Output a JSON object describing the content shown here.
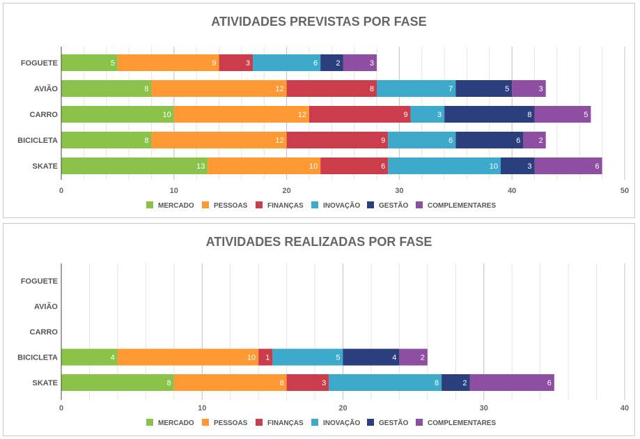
{
  "chart_data": [
    {
      "type": "bar",
      "orientation": "horizontal",
      "stacked": true,
      "title": "ATIVIDADES PREVISTAS POR FASE",
      "categories": [
        "FOGUETE",
        "AVIÃO",
        "CARRO",
        "BICICLETA",
        "SKATE"
      ],
      "series": [
        {
          "name": "MERCADO",
          "color": "#8BC34A",
          "values": [
            5,
            8,
            10,
            8,
            13
          ]
        },
        {
          "name": "PESSOAS",
          "color": "#FF9933",
          "values": [
            9,
            12,
            12,
            12,
            10
          ]
        },
        {
          "name": "FINANÇAS",
          "color": "#CC3D4B",
          "values": [
            3,
            8,
            9,
            9,
            6
          ]
        },
        {
          "name": "INOVAÇÃO",
          "color": "#3DAACC",
          "values": [
            6,
            7,
            3,
            6,
            10
          ]
        },
        {
          "name": "GESTÃO",
          "color": "#2B3F7E",
          "values": [
            2,
            5,
            8,
            6,
            3
          ]
        },
        {
          "name": "COMPLEMENTARES",
          "color": "#8E4FA3",
          "values": [
            3,
            3,
            5,
            2,
            6
          ]
        }
      ],
      "xlim": [
        0,
        50
      ],
      "xticks": [
        0,
        10,
        20,
        30,
        40,
        50
      ],
      "minor_grid_step": 2,
      "grid": true,
      "legend_position": "bottom"
    },
    {
      "type": "bar",
      "orientation": "horizontal",
      "stacked": true,
      "title": "ATIVIDADES REALIZADAS POR FASE",
      "categories": [
        "FOGUETE",
        "AVIÃO",
        "CARRO",
        "BICICLETA",
        "SKATE"
      ],
      "series": [
        {
          "name": "MERCADO",
          "color": "#8BC34A",
          "values": [
            0,
            0,
            0,
            4,
            8
          ]
        },
        {
          "name": "PESSOAS",
          "color": "#FF9933",
          "values": [
            0,
            0,
            0,
            10,
            8
          ]
        },
        {
          "name": "FINANÇAS",
          "color": "#CC3D4B",
          "values": [
            0,
            0,
            0,
            1,
            3
          ]
        },
        {
          "name": "INOVAÇÃO",
          "color": "#3DAACC",
          "values": [
            0,
            0,
            0,
            5,
            8
          ]
        },
        {
          "name": "GESTÃO",
          "color": "#2B3F7E",
          "values": [
            0,
            0,
            0,
            4,
            2
          ]
        },
        {
          "name": "COMPLEMENTARES",
          "color": "#8E4FA3",
          "values": [
            0,
            0,
            0,
            2,
            6
          ]
        }
      ],
      "xlim": [
        0,
        40
      ],
      "xticks": [
        0,
        10,
        20,
        30,
        40
      ],
      "minor_grid_step": 2,
      "grid": true,
      "legend_position": "bottom"
    }
  ]
}
